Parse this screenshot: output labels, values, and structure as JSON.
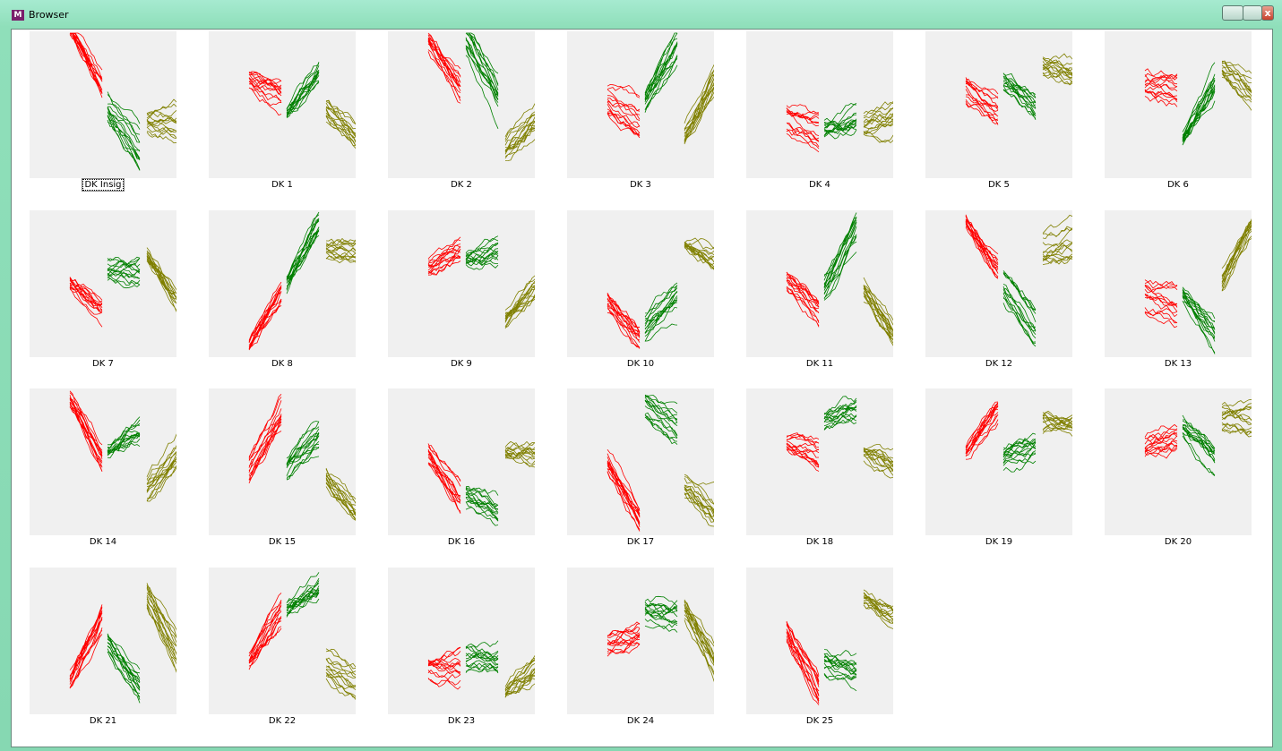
{
  "window": {
    "title": "Browser"
  },
  "plot_colors": [
    "#ff0000",
    "#008000",
    "#808000"
  ],
  "tiles": [
    {
      "label": "DK Insig"
    },
    {
      "label": "DK 1"
    },
    {
      "label": "DK 2"
    },
    {
      "label": "DK 3"
    },
    {
      "label": "DK 4"
    },
    {
      "label": "DK 5"
    },
    {
      "label": "DK 6"
    },
    {
      "label": "DK 7"
    },
    {
      "label": "DK 8"
    },
    {
      "label": "DK 9"
    },
    {
      "label": "DK 10"
    },
    {
      "label": "DK 11"
    },
    {
      "label": "DK 12"
    },
    {
      "label": "DK 13"
    },
    {
      "label": "DK 14"
    },
    {
      "label": "DK 15"
    },
    {
      "label": "DK 16"
    },
    {
      "label": "DK 17"
    },
    {
      "label": "DK 18"
    },
    {
      "label": "DK 19"
    },
    {
      "label": "DK 20"
    },
    {
      "label": "DK 21"
    },
    {
      "label": "DK 22"
    },
    {
      "label": "DK 23"
    },
    {
      "label": "DK 24"
    },
    {
      "label": "DK 25"
    }
  ]
}
